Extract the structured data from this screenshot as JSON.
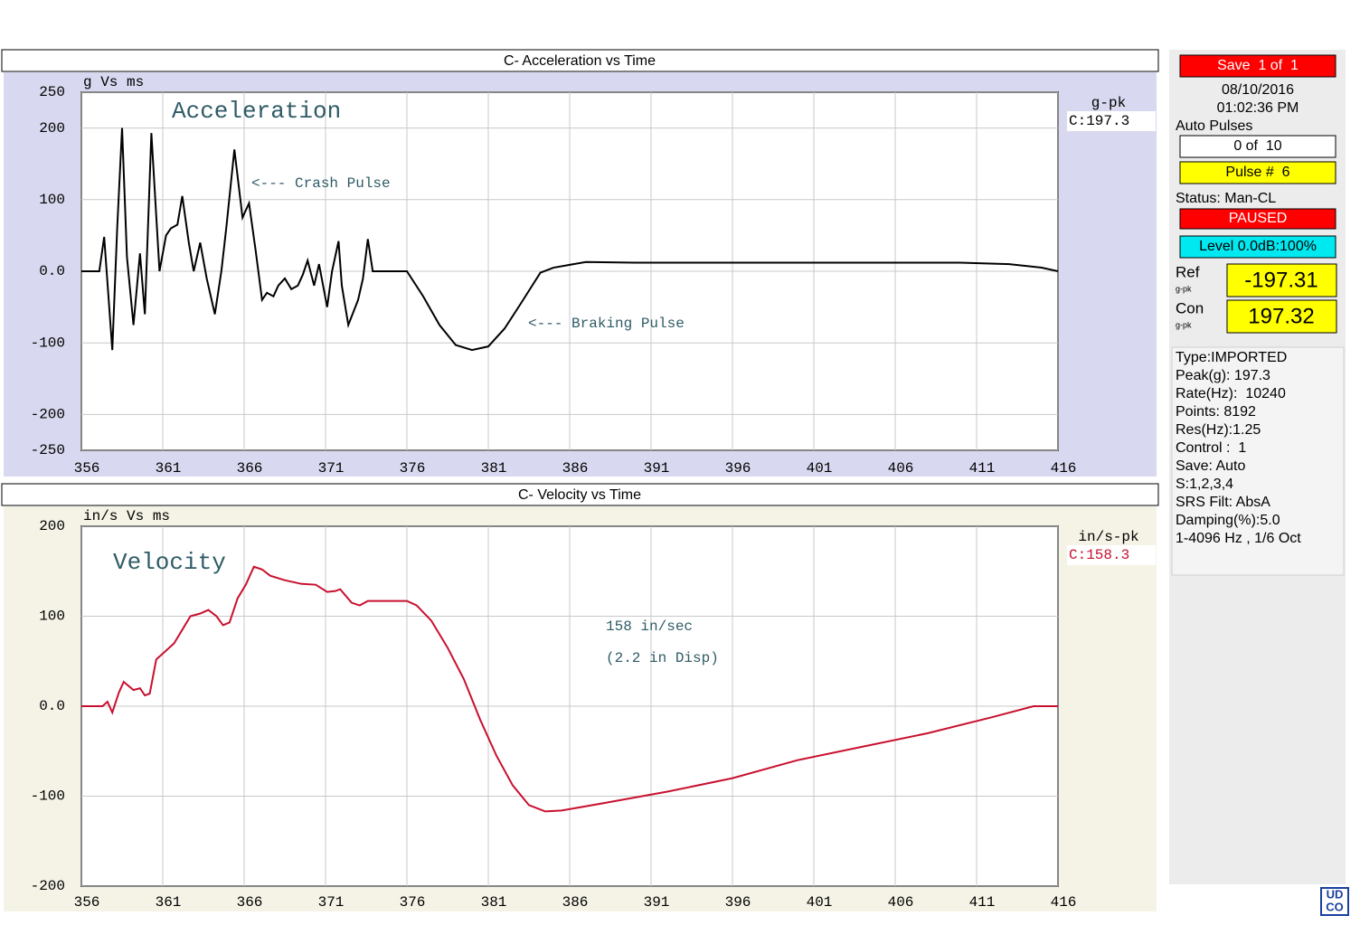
{
  "chart_data": [
    {
      "type": "line",
      "title": "C- Acceleration vs Time",
      "unit_label": "g Vs ms",
      "readout_label": "g-pk",
      "readout_value": "C:197.3",
      "annotations": [
        "Acceleration",
        "<--- Crash Pulse",
        "<--- Braking Pulse"
      ],
      "color": "#000000",
      "background": "#d8d8f0",
      "x": [
        356,
        357.1,
        357.4,
        357.9,
        358.2,
        358.5,
        358.8,
        359.2,
        359.6,
        359.9,
        360.3,
        360.8,
        361.2,
        361.5,
        361.9,
        362.2,
        362.6,
        362.9,
        363.3,
        363.7,
        364.2,
        364.6,
        364.9,
        365.4,
        365.9,
        366.3,
        366.7,
        367.1,
        367.4,
        367.8,
        368.1,
        368.5,
        368.9,
        369.3,
        369.6,
        369.9,
        370.3,
        370.6,
        371.1,
        371.4,
        371.8,
        372.0,
        372.4,
        373.0,
        373.3,
        373.6,
        373.9,
        376,
        377,
        378,
        379,
        380,
        381,
        382,
        383,
        384.2,
        385,
        387,
        390,
        410,
        413,
        415,
        416
      ],
      "values": [
        0,
        0,
        48,
        -110,
        60,
        200,
        20,
        -75,
        25,
        -60,
        193,
        0,
        50,
        60,
        65,
        105,
        40,
        0,
        40,
        -10,
        -60,
        0,
        60,
        170,
        75,
        95,
        30,
        -40,
        -30,
        -35,
        -20,
        -10,
        -25,
        -20,
        -5,
        15,
        -20,
        10,
        -50,
        0,
        42,
        -20,
        -75,
        -40,
        -10,
        45,
        0,
        0,
        -35,
        -75,
        -103,
        -110,
        -105,
        -80,
        -45,
        -2,
        5,
        13,
        12,
        12,
        10,
        5,
        0
      ],
      "xlim": [
        356,
        416
      ],
      "xticks": [
        356,
        361,
        366,
        371,
        376,
        381,
        386,
        391,
        396,
        401,
        406,
        411,
        416
      ],
      "ylim": [
        -250,
        250
      ],
      "yticks": [
        -250,
        -200,
        -100,
        {
          "value": 0,
          "label": "0.0"
        },
        100,
        200,
        250
      ],
      "grid": true
    },
    {
      "type": "line",
      "title": "C- Velocity vs Time",
      "unit_label": "in/s Vs ms",
      "readout_label": "in/s-pk",
      "readout_value": "C:158.3",
      "annotations": [
        "Velocity",
        "158 in/sec",
        "(2.2 in Disp)"
      ],
      "color": "#c8102e",
      "background": "#f5f3e6",
      "x": [
        356,
        357.3,
        357.6,
        357.9,
        358.3,
        358.6,
        359.2,
        359.6,
        359.9,
        360.2,
        360.6,
        361.1,
        361.7,
        362.2,
        362.7,
        363.3,
        363.8,
        364.3,
        364.7,
        365.1,
        365.6,
        366.1,
        366.6,
        367.1,
        367.6,
        368.5,
        369.5,
        370.4,
        371.1,
        371.6,
        371.9,
        372.6,
        373.1,
        373.6,
        376,
        376.6,
        377.5,
        378.5,
        379.5,
        380.5,
        381.5,
        382.5,
        383.5,
        384.5,
        385.5,
        388,
        392,
        396,
        400,
        404,
        408,
        412,
        414.5,
        416
      ],
      "values": [
        0,
        0,
        5,
        -7,
        15,
        27,
        18,
        20,
        12,
        14,
        52,
        60,
        70,
        85,
        100,
        103,
        107,
        100,
        90,
        93,
        120,
        135,
        155,
        152,
        145,
        140,
        136,
        135,
        127,
        128,
        130,
        115,
        112,
        117,
        117,
        112,
        95,
        65,
        30,
        -15,
        -55,
        -88,
        -110,
        -117,
        -116,
        -108,
        -95,
        -80,
        -60,
        -45,
        -30,
        -12,
        0,
        0
      ],
      "xlim": [
        356,
        416
      ],
      "xticks": [
        356,
        361,
        366,
        371,
        376,
        381,
        386,
        391,
        396,
        401,
        406,
        411,
        416
      ],
      "ylim": [
        -200,
        200
      ],
      "yticks": [
        -200,
        -100,
        {
          "value": 0,
          "label": "0.0"
        },
        100,
        200
      ],
      "grid": true
    }
  ],
  "panel": {
    "save": "Save  1 of  1",
    "date": "08/10/2016",
    "time": "01:02:36 PM",
    "auto_pulses": "Auto Pulses",
    "pulses_count": "0 of  10",
    "pulse_number": "Pulse #  6",
    "status": "Status: Man-CL",
    "state": "PAUSED",
    "level": "Level 0.0dB:100%",
    "ref_label": "Ref",
    "ref_unit": "g-pk",
    "ref_value": "-197.31",
    "con_label": "Con",
    "con_unit": "g-pk",
    "con_value": "197.32",
    "info": [
      "Type:IMPORTED",
      "Peak(g): 197.3",
      "Rate(Hz):  10240",
      "Points: 8192",
      "Res(Hz):1.25",
      "Control :  1",
      "Save: Auto",
      "S:1,2,3,4",
      "SRS Filt: AbsA",
      "Damping(%):5.0",
      "1-4096 Hz , 1/6 Oct"
    ],
    "logo_top": "UD",
    "logo_bottom": "CO"
  }
}
